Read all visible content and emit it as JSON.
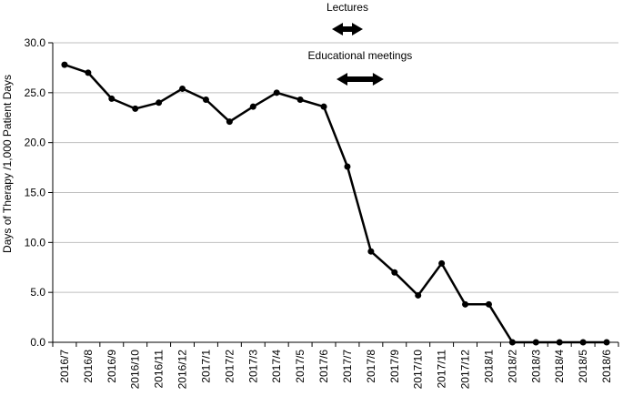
{
  "chart_data": {
    "type": "line",
    "title": "",
    "xlabel": "",
    "ylabel": "Days of Therapy /1,000 Patient Days",
    "ylim": [
      0,
      30
    ],
    "yticks": [
      "0.0",
      "5.0",
      "10.0",
      "15.0",
      "20.0",
      "25.0",
      "30.0"
    ],
    "grid": true,
    "categories": [
      "2016/7",
      "2016/8",
      "2016/9",
      "2016/10",
      "2016/11",
      "2016/12",
      "2017/1",
      "2017/2",
      "2017/3",
      "2017/4",
      "2017/5",
      "2017/6",
      "2017/7",
      "2017/8",
      "2017/9",
      "2017/10",
      "2017/11",
      "2017/12",
      "2018/1",
      "2018/2",
      "2018/3",
      "2018/4",
      "2018/5",
      "2018/6"
    ],
    "series": [
      {
        "values": [
          27.8,
          27.0,
          24.4,
          23.4,
          24.0,
          25.4,
          24.3,
          22.1,
          23.6,
          25.0,
          24.3,
          23.6,
          17.6,
          9.1,
          7.0,
          4.7,
          7.9,
          3.8,
          3.8,
          0.0,
          0.0,
          0.0,
          0.0,
          0.0
        ]
      }
    ],
    "annotations": [
      {
        "text": "Lectures",
        "start": "2017/7",
        "end": "2017/7"
      },
      {
        "text": "Educational meetings",
        "start": "2017/7",
        "end": "2017/8"
      }
    ],
    "colors": {
      "line": "#000000",
      "grid": "#bfbfbf",
      "axis": "#000000"
    }
  }
}
